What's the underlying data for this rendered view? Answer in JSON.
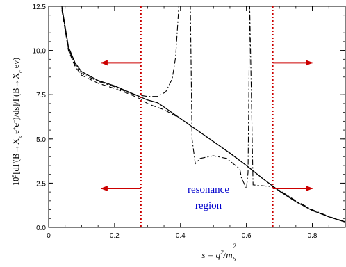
{
  "chart_data": {
    "type": "line",
    "xlabel": "s = q²/m_b²",
    "ylabel": "10⁵[dΓ(B→X_s e⁺e⁻)/ds]/Γ(B→X_c eν)",
    "xlabel_parts": {
      "lhs": "s = q",
      "sup1": "2",
      "mid": "/m",
      "sub": "b",
      "sup2": "2"
    },
    "ylabel_parts": {
      "prefix": "10",
      "exp": "5",
      "num_a": "[dΓ(B→X",
      "num_sub": "s",
      "num_b": " e",
      "num_sup1": "+",
      "num_c": "e",
      "num_sup2": "−",
      "num_d": ")/ds]/Γ(B→X",
      "den_sub": "c",
      "den_b": " eν)"
    },
    "xlim": [
      0,
      0.9
    ],
    "ylim": [
      0,
      12.5
    ],
    "xticks": [
      0,
      0.2,
      0.4,
      0.6,
      0.8
    ],
    "xtick_labels": [
      "0",
      "0.2",
      "0.4",
      "0.6",
      "0.8"
    ],
    "yticks": [
      0,
      2.5,
      5.0,
      7.5,
      10.0,
      12.5
    ],
    "ytick_labels": [
      "0.0",
      "2.5",
      "5.0",
      "7.5",
      "10.0",
      "12.5"
    ],
    "annotation": {
      "line1": "resonance",
      "line2": "region",
      "color": "#0000cc"
    },
    "cuts": {
      "x": [
        0.28,
        0.68
      ],
      "color": "#cc0000",
      "style": "dotted"
    },
    "arrows": [
      {
        "x_from": 0.28,
        "x_to": 0.16,
        "y": 9.3,
        "color": "#cc0000"
      },
      {
        "x_from": 0.68,
        "x_to": 0.8,
        "y": 9.3,
        "color": "#cc0000"
      },
      {
        "x_from": 0.28,
        "x_to": 0.16,
        "y": 2.2,
        "color": "#cc0000"
      },
      {
        "x_from": 0.68,
        "x_to": 0.8,
        "y": 2.2,
        "color": "#cc0000"
      }
    ],
    "series": [
      {
        "style": "solid",
        "color": "#000000",
        "x": [
          0.04,
          0.06,
          0.08,
          0.1,
          0.15,
          0.2,
          0.25,
          0.3,
          0.33,
          0.35,
          0.4,
          0.45,
          0.5,
          0.55,
          0.6,
          0.65,
          0.7,
          0.75,
          0.8,
          0.85,
          0.9
        ],
        "y": [
          12.5,
          10.2,
          9.3,
          8.8,
          8.3,
          8.0,
          7.6,
          7.2,
          7.05,
          6.8,
          6.15,
          5.5,
          4.85,
          4.2,
          3.5,
          2.75,
          2.05,
          1.45,
          0.95,
          0.6,
          0.3
        ]
      },
      {
        "style": "dashed",
        "color": "#000000",
        "x": [
          0.04,
          0.06,
          0.08,
          0.1,
          0.15,
          0.2,
          0.25,
          0.28,
          0.3,
          0.32,
          0.35,
          0.4,
          0.45,
          0.5,
          0.55,
          0.6,
          0.65,
          0.7,
          0.75,
          0.8,
          0.85,
          0.9
        ],
        "y": [
          12.3,
          10.0,
          9.1,
          8.6,
          8.15,
          7.85,
          7.5,
          7.25,
          7.0,
          6.85,
          6.65,
          6.15,
          5.5,
          4.85,
          4.2,
          3.5,
          2.75,
          2.05,
          1.45,
          0.95,
          0.6,
          0.3
        ]
      },
      {
        "style": "dashdot",
        "color": "#000000",
        "x": [
          0.04,
          0.06,
          0.08,
          0.1,
          0.15,
          0.2,
          0.25,
          0.3,
          0.33,
          0.355,
          0.375,
          0.385,
          0.39,
          0.395,
          0.43,
          0.435,
          0.445,
          0.46,
          0.5,
          0.54,
          0.56,
          0.58,
          0.585,
          0.6,
          0.605,
          0.61,
          0.62,
          0.65,
          0.68,
          0.7,
          0.75,
          0.8,
          0.85,
          0.9
        ],
        "y": [
          12.4,
          10.1,
          9.2,
          8.7,
          8.25,
          7.95,
          7.55,
          7.4,
          7.4,
          7.65,
          8.4,
          9.6,
          11.0,
          12.5,
          12.5,
          5.0,
          3.6,
          3.9,
          4.05,
          3.9,
          3.6,
          3.3,
          2.8,
          2.2,
          3.1,
          12.5,
          2.4,
          2.35,
          2.3,
          2.1,
          1.5,
          1.0,
          0.62,
          0.32
        ]
      }
    ]
  }
}
